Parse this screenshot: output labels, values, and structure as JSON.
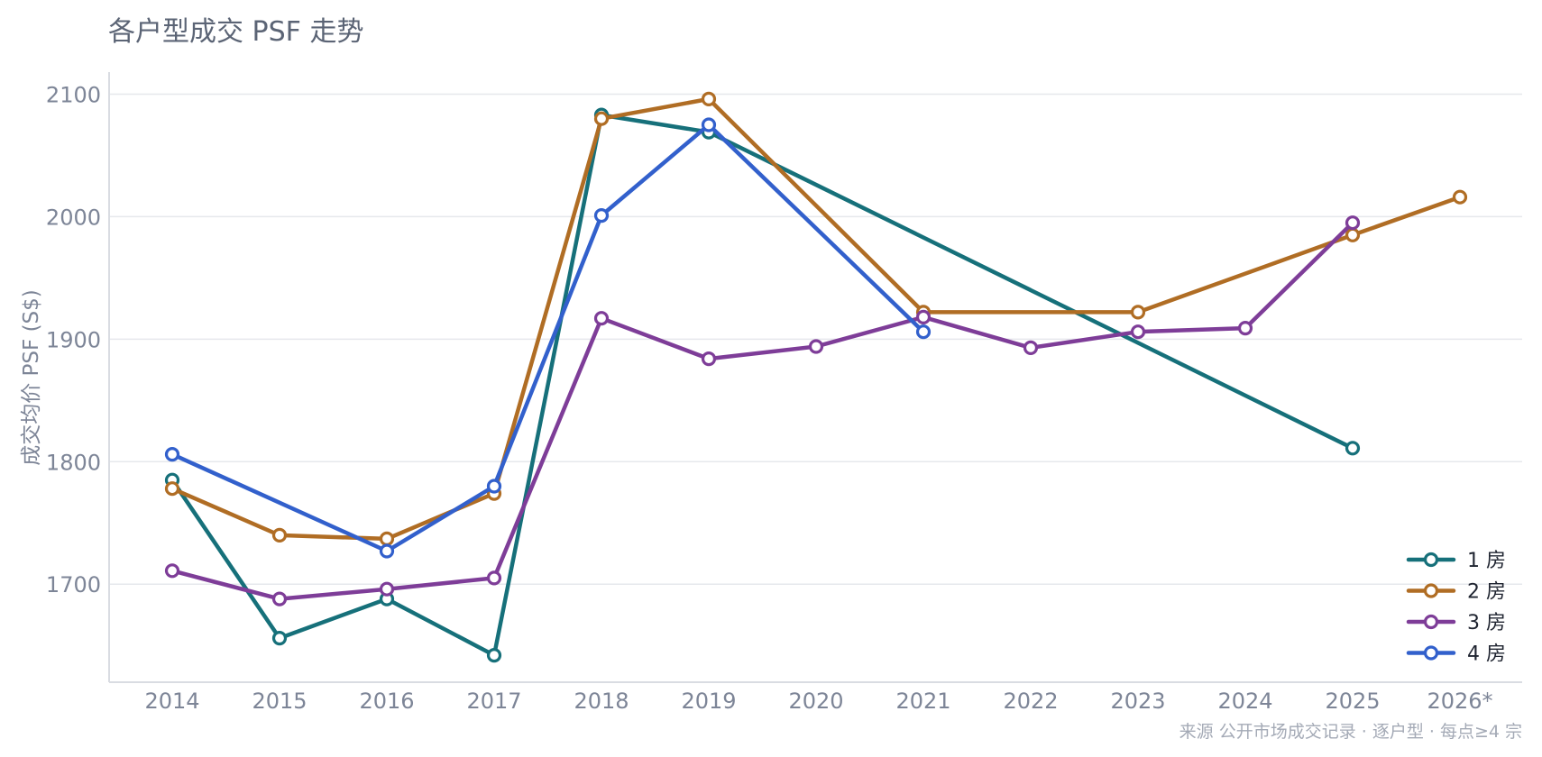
{
  "chart_data": {
    "type": "line",
    "title": "各户型成交 PSF 走势",
    "xlabel": "",
    "ylabel": "成交均价 PSF (S$)",
    "categories": [
      "2014",
      "2015",
      "2016",
      "2017",
      "2018",
      "2019",
      "2020",
      "2021",
      "2022",
      "2023",
      "2024",
      "2025",
      "2026*"
    ],
    "yticks": [
      1700,
      1800,
      1900,
      2000,
      2100
    ],
    "ylim": [
      1620,
      2118
    ],
    "grid": true,
    "legend_position": "bottom-right",
    "series": [
      {
        "name": "1 房",
        "color": "#16707a",
        "values": [
          1785,
          1656,
          1688,
          1642,
          2083,
          2069,
          null,
          null,
          null,
          null,
          null,
          1811,
          null
        ]
      },
      {
        "name": "2 房",
        "color": "#b06d24",
        "values": [
          1778,
          1740,
          1737,
          1774,
          2080,
          2096,
          null,
          1922,
          null,
          1922,
          null,
          1985,
          2016
        ]
      },
      {
        "name": "3 房",
        "color": "#7e3d98",
        "values": [
          1711,
          1688,
          1696,
          1705,
          1917,
          1884,
          1894,
          1918,
          1893,
          1906,
          1909,
          1995,
          null
        ]
      },
      {
        "name": "4 房",
        "color": "#3260cc",
        "values": [
          1806,
          null,
          1727,
          1780,
          2001,
          2075,
          null,
          1906,
          null,
          null,
          null,
          null,
          null
        ]
      }
    ],
    "source": "来源 公开市场成交记录 · 逐户型 · 每点≥4 宗"
  }
}
